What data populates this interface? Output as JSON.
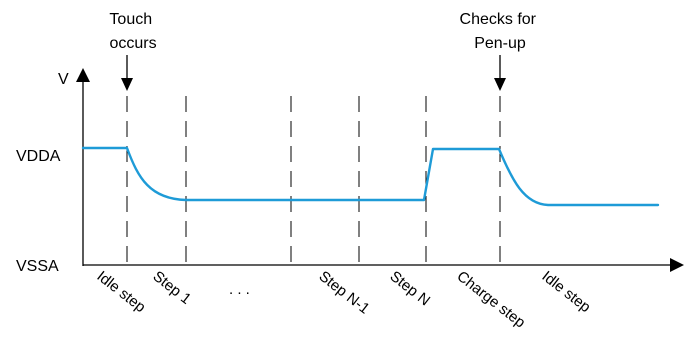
{
  "axis": {
    "y_label": "V",
    "level_high": "VDDA",
    "level_low": "VSSA"
  },
  "annotations": {
    "touch": [
      "Touch",
      "occurs"
    ],
    "penup": [
      "Checks for",
      "Pen-up"
    ]
  },
  "steps": [
    "Idle step",
    "Step 1",
    "Step N-1",
    "Step N",
    "Charge step",
    "Idle step"
  ],
  "ellipsis": ". . .",
  "colors": {
    "waveform": "#1e9bd7",
    "lines": "#000000"
  }
}
